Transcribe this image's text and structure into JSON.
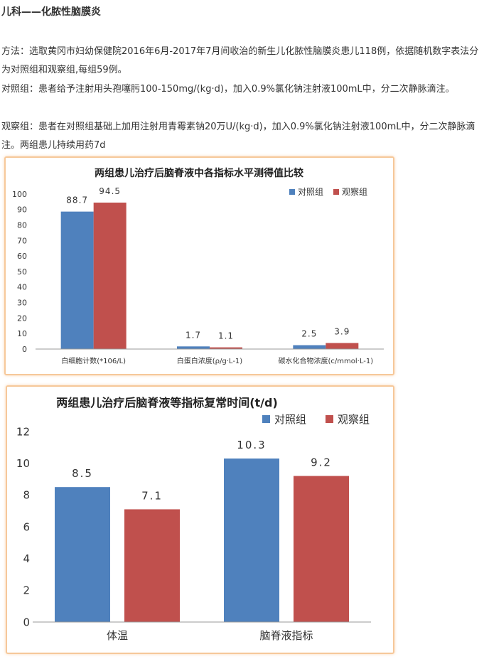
{
  "article": {
    "title": "儿科——化脓性脑膜炎",
    "method": "方法：选取黄冈市妇幼保健院2016年6月-2017年7月间收治的新生儿化脓性脑膜炎患儿118例，依据随机数字表法分为对照组和观察组,每组59例。",
    "control": "对照组：患者给予注射用头孢噻肟100-150mg/(kg·d)，加入0.9%氯化钠注射液100mL中，分二次静脉滴注。",
    "observe": "观察组：患者在对照组基础上加用注射用青霉素钠20万U/(kg·d)，加入0.9%氯化钠注射液100mL中，分二次静脉滴注。两组患儿持续用药7d"
  },
  "colors": {
    "control": "#4f81bd",
    "observe": "#c0504d",
    "frame": "#f6c89a"
  },
  "chart_data": [
    {
      "type": "bar",
      "title": "两组患儿治疗后脑脊液中各指标水平测得值比较",
      "categories": [
        "白细胞计数(*106/L)",
        "白蛋白浓度(ρ/g·L-1)",
        "碳水化合物浓度(c/mmol·L-1)"
      ],
      "series": [
        {
          "name": "对照组",
          "values": [
            88.7,
            1.7,
            2.5
          ]
        },
        {
          "name": "观察组",
          "values": [
            94.5,
            1.1,
            3.9
          ]
        }
      ],
      "value_labels": [
        [
          "88.7",
          "1.7",
          "2.5"
        ],
        [
          "94.5",
          "1.1",
          "3.9"
        ]
      ],
      "ylim": [
        0,
        100
      ],
      "yticks": [
        0,
        10,
        20,
        30,
        40,
        50,
        60,
        70,
        80,
        90,
        100
      ],
      "ytick_labels": [
        "0",
        "10",
        "20",
        "30",
        "40",
        "50",
        "60",
        "70",
        "80",
        "90",
        "100"
      ],
      "grid": false,
      "legend": "top-right"
    },
    {
      "type": "bar",
      "title": "两组患儿治疗后脑脊液等指标复常时间(t/d)",
      "categories": [
        "体温",
        "脑脊液指标"
      ],
      "series": [
        {
          "name": "对照组",
          "values": [
            8.5,
            10.3
          ]
        },
        {
          "name": "观察组",
          "values": [
            7.1,
            9.2
          ]
        }
      ],
      "value_labels": [
        [
          "8.5",
          "10.3"
        ],
        [
          "7.1",
          "9.2"
        ]
      ],
      "ylim": [
        0,
        12
      ],
      "yticks": [
        0,
        2,
        4,
        6,
        8,
        10,
        12
      ],
      "ytick_labels": [
        "0",
        "2",
        "4",
        "6",
        "8",
        "10",
        "12"
      ],
      "grid": false,
      "legend": "top-right"
    }
  ]
}
